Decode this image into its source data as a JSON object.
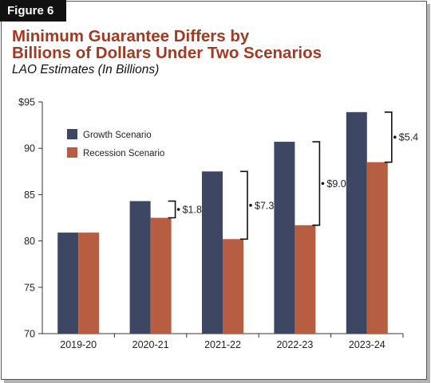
{
  "figure_label": "Figure 6",
  "title_line1": "Minimum Guarantee Differs by",
  "title_line2": "Billions of Dollars Under Two Scenarios",
  "subtitle": "LAO Estimates (In Billions)",
  "colors": {
    "growth": "#3d4663",
    "recession": "#b65d42",
    "title": "#a23a22"
  },
  "chart_data": {
    "type": "bar",
    "categories": [
      "2019-20",
      "2020-21",
      "2021-22",
      "2022-23",
      "2023-24"
    ],
    "series": [
      {
        "name": "Growth Scenario",
        "values": [
          80.9,
          84.3,
          87.5,
          90.7,
          93.9
        ]
      },
      {
        "name": "Recession Scenario",
        "values": [
          80.9,
          82.5,
          80.2,
          81.7,
          88.5
        ]
      }
    ],
    "differences": [
      "",
      "$1.8",
      "$7.3",
      "$9.0",
      "$5.4"
    ],
    "ylim": [
      70,
      95
    ],
    "yticks": [
      70,
      75,
      80,
      85,
      90,
      95
    ],
    "ytick_labels": [
      "70",
      "75",
      "80",
      "85",
      "90",
      "$95"
    ],
    "legend_position": "top-left",
    "grid": false
  }
}
